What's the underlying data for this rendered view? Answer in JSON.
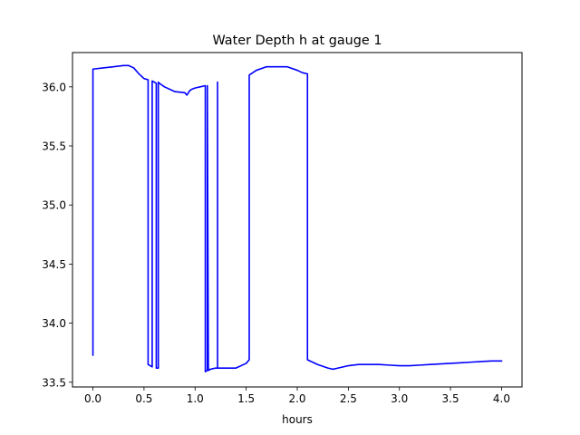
{
  "chart_data": {
    "type": "line",
    "title": "Water Depth h at gauge 1",
    "xlabel": "hours",
    "ylabel": "",
    "xlim": [
      -0.2,
      4.2
    ],
    "ylim": [
      33.46,
      36.29
    ],
    "xticks": [
      0.0,
      0.5,
      1.0,
      1.5,
      2.0,
      2.5,
      3.0,
      3.5,
      4.0
    ],
    "xtick_labels": [
      "0.0",
      "0.5",
      "1.0",
      "1.5",
      "2.0",
      "2.5",
      "3.0",
      "3.5",
      "4.0"
    ],
    "yticks": [
      33.5,
      34.0,
      34.5,
      35.0,
      35.5,
      36.0
    ],
    "ytick_labels": [
      "33.5",
      "34.0",
      "34.5",
      "35.0",
      "35.5",
      "36.0"
    ],
    "grid": false,
    "legend": "none",
    "series": [
      {
        "color": "#0000ff",
        "x": [
          0.0,
          0.0,
          0.1,
          0.2,
          0.3,
          0.35,
          0.4,
          0.45,
          0.5,
          0.54,
          0.54,
          0.58,
          0.58,
          0.6,
          0.62,
          0.62,
          0.62,
          0.64,
          0.64,
          0.65,
          0.7,
          0.8,
          0.9,
          0.92,
          0.95,
          0.97,
          1.0,
          1.05,
          1.1,
          1.1,
          1.12,
          1.12,
          1.13,
          1.15,
          1.2,
          1.22,
          1.22,
          1.22,
          1.3,
          1.4,
          1.5,
          1.53,
          1.53,
          1.6,
          1.7,
          1.8,
          1.9,
          2.0,
          2.05,
          2.1,
          2.1,
          2.2,
          2.3,
          2.35,
          2.4,
          2.5,
          2.6,
          2.7,
          2.75,
          2.8,
          2.9,
          3.0,
          3.1,
          3.2,
          3.3,
          3.4,
          3.5,
          3.6,
          3.7,
          3.8,
          3.9,
          4.0
        ],
        "y": [
          33.73,
          36.15,
          36.16,
          36.17,
          36.18,
          36.18,
          36.16,
          36.11,
          36.07,
          36.06,
          33.65,
          33.63,
          36.05,
          36.04,
          36.03,
          33.63,
          33.62,
          33.62,
          36.04,
          36.03,
          36.0,
          35.96,
          35.95,
          35.93,
          35.97,
          35.98,
          35.99,
          36.0,
          36.01,
          33.59,
          33.6,
          36.01,
          33.6,
          33.61,
          33.62,
          33.62,
          36.04,
          33.62,
          33.62,
          33.62,
          33.66,
          33.69,
          36.1,
          36.14,
          36.17,
          36.17,
          36.17,
          36.14,
          36.12,
          36.11,
          33.69,
          33.65,
          33.62,
          33.61,
          33.62,
          33.64,
          33.65,
          33.65,
          33.65,
          33.65,
          33.645,
          33.64,
          33.64,
          33.645,
          33.65,
          33.655,
          33.66,
          33.665,
          33.67,
          33.675,
          33.68,
          33.68
        ]
      }
    ]
  }
}
